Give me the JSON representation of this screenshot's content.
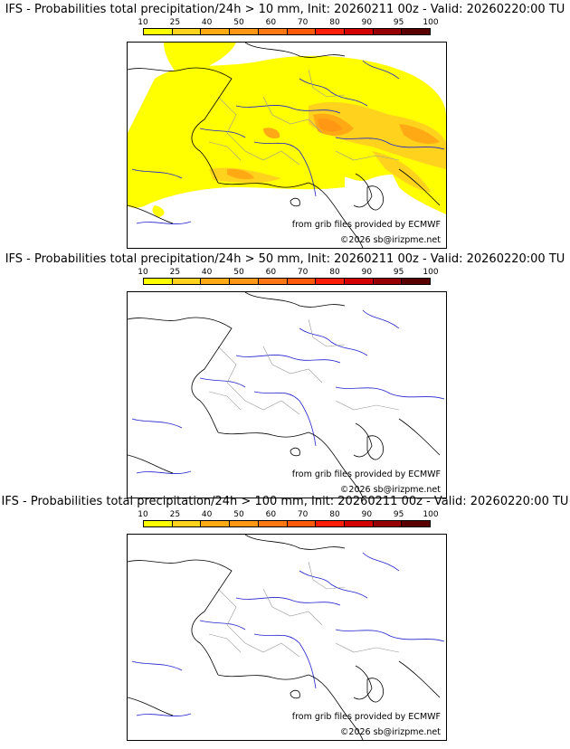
{
  "colorbar": {
    "ticks": [
      "10",
      "25",
      "40",
      "50",
      "60",
      "70",
      "80",
      "90",
      "95",
      "100"
    ],
    "colors": [
      "#ffff00",
      "#ffd21e",
      "#ffaa14",
      "#ff9614",
      "#ff7814",
      "#ff5a0a",
      "#ff1e0a",
      "#d20000",
      "#960000",
      "#5a0000"
    ]
  },
  "credits": {
    "source": "from grib files provided by ECMWF",
    "copyright": "©2026 sb@irizpme.net"
  },
  "panels": [
    {
      "title": "IFS - Probabilities total precipitation/24h > 10 mm, Init: 20260211 00z - Valid: 20260220:00 TU",
      "threshold_mm": 10,
      "has_field": true
    },
    {
      "title": "IFS - Probabilities total precipitation/24h > 50 mm, Init: 20260211 00z - Valid: 20260220:00 TU",
      "threshold_mm": 50,
      "has_field": false
    },
    {
      "title": "IFS - Probabilities total precipitation/24h > 100 mm, Init: 20260211 00z - Valid: 20260220:00 TU",
      "threshold_mm": 100,
      "has_field": false
    }
  ],
  "colors": {
    "coast": "#000000",
    "river": "#2222cc",
    "border": "#999999"
  }
}
